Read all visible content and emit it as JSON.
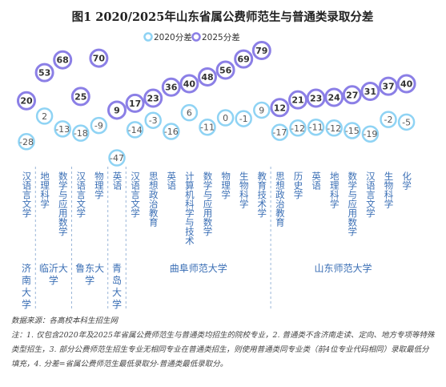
{
  "chart_data": {
    "type": "dot",
    "title": "图1  2020/2025年山东省属公费师范生与普通类录取分差",
    "series": [
      {
        "name": "2020分差",
        "color": "#8fd3f4",
        "values": [
          -28,
          2,
          -13,
          -18,
          -9,
          -47,
          -14,
          -3,
          -16,
          6,
          -11,
          0,
          -1,
          9,
          -17,
          -12,
          -11,
          -12,
          -15,
          -19,
          -2,
          -5
        ]
      },
      {
        "name": "2025分差",
        "color": "#8b7fe6",
        "values": [
          20,
          53,
          68,
          25,
          70,
          9,
          17,
          23,
          36,
          40,
          48,
          56,
          69,
          79,
          12,
          21,
          23,
          24,
          27,
          31,
          37,
          40
        ]
      }
    ],
    "groups": [
      {
        "name": "济南大学",
        "categories": [
          "汉语言文学"
        ]
      },
      {
        "name": "临沂大学",
        "categories": [
          "地理科学",
          "数学与应用数学"
        ]
      },
      {
        "name": "鲁东大学",
        "categories": [
          "汉语言文学",
          "物理学"
        ]
      },
      {
        "name": "青岛大学",
        "categories": [
          "英语"
        ]
      },
      {
        "name": "曲阜师范大学",
        "categories": [
          "汉语言文学",
          "思想政治教育",
          "英语",
          "计算机科学与技术",
          "数学与应用数学",
          "物理学",
          "生物科学",
          "教育技术学"
        ]
      },
      {
        "name": "山东师范大学",
        "categories": [
          "思想政治教育",
          "历史学",
          "英语",
          "地理科学",
          "数学与应用数学",
          "汉语言文学",
          "生物科学",
          "化学"
        ]
      }
    ],
    "source": "数据来源：各高校本科生招生网",
    "notes": "注：1. 仅包含2020年及2025年省属公费师范生与普通类均招生的院校专业，2. 普通类不含济南走读、定向、地方专项等特殊类型招生，3. 部分公费师范生招生专业无相同专业在普通类招生，则使用普通类同专业类（前4位专业代码相同）录取最低分填充，4. 分差=省属公费师范生最低录取分-普通类最低录取分。"
  }
}
